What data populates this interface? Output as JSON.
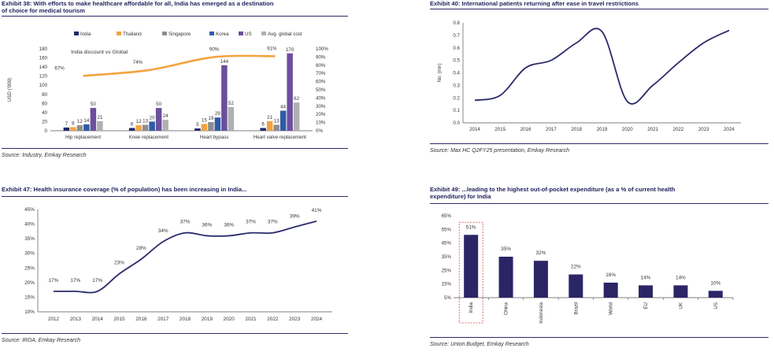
{
  "colors": {
    "navy": "#2b2b6b",
    "india": "#1f2a6b",
    "thailand": "#f4a340",
    "singapore": "#8e8e8e",
    "korea": "#2f5aa8",
    "us": "#6b4f9e",
    "avg": "#b0b0b0",
    "line": "#2b2b6b",
    "bar49": "#2b2566",
    "highlight": "#e04040"
  },
  "panels": {
    "p38": {
      "title_line1": "Exhibit 38: With efforts to make healthcare affordable for all, India has emerged as a destination",
      "title_line2": "of choice for medical tourism",
      "source": "Source: Industry, Emkay Research"
    },
    "p40": {
      "title": "Exhibit 40: International patients returning after ease in travel restrictions",
      "source": "Source: Max HC Q2FY25 presentation, Emkay Research"
    },
    "p47": {
      "title": "Exhibit 47: Health insurance coverage (% of population) has been increasing in India...",
      "source": "Source: IRDA, Emkay Research"
    },
    "p49": {
      "title_line1": "Exhibit 49: ...leading to the highest out-of-pocket expenditure (as a % of current health",
      "title_line2": "expenditure) for India",
      "source": "Source: Union Budget, Emkay Research"
    }
  },
  "chart_data": [
    {
      "id": "ex38",
      "type": "bar",
      "annotation": "India discount vs Global",
      "ylabel": "USD ('000)",
      "ylim": [
        0,
        180
      ],
      "yticks": [
        "0",
        "20",
        "40",
        "60",
        "80",
        "100",
        "120",
        "140",
        "160",
        "180"
      ],
      "y2lim": [
        0,
        100
      ],
      "y2ticks": [
        "0%",
        "10%",
        "20%",
        "30%",
        "40%",
        "50%",
        "60%",
        "70%",
        "80%",
        "90%",
        "100%"
      ],
      "categories": [
        "Hip replacement",
        "Knee replacement",
        "Heart bypass",
        "Heart valve replacement"
      ],
      "series": [
        {
          "name": "India",
          "values": [
            7,
            6,
            5,
            6
          ]
        },
        {
          "name": "Thailand",
          "values": [
            8,
            12,
            15,
            21
          ]
        },
        {
          "name": "Singapore",
          "values": [
            12,
            13,
            19,
            13
          ]
        },
        {
          "name": "Korea",
          "values": [
            14,
            20,
            29,
            44
          ]
        },
        {
          "name": "US",
          "values": [
            50,
            50,
            144,
            170
          ]
        },
        {
          "name": "Avg. global cost",
          "values": [
            21,
            24,
            52,
            62
          ]
        }
      ],
      "discount_line": {
        "name": "India discount vs Global",
        "values": [
          67,
          74,
          90,
          91
        ],
        "labels": [
          "67%",
          "74%",
          "90%",
          "91%"
        ]
      }
    },
    {
      "id": "ex40",
      "type": "line",
      "ylabel": "No. (mn)",
      "ylim": [
        0,
        0.8
      ],
      "yticks": [
        "0.0",
        "0.1",
        "0.2",
        "0.3",
        "0.4",
        "0.5",
        "0.6",
        "0.7",
        "0.8"
      ],
      "x": [
        "2014",
        "2015",
        "2016",
        "2017",
        "2018",
        "2019",
        "2020",
        "2021",
        "2022",
        "2023",
        "2024"
      ],
      "values": [
        0.18,
        0.22,
        0.44,
        0.5,
        0.64,
        0.73,
        0.17,
        0.3,
        0.48,
        0.64,
        0.74
      ]
    },
    {
      "id": "ex47",
      "type": "line",
      "ylim": [
        10,
        45
      ],
      "yticks": [
        "10%",
        "15%",
        "20%",
        "25%",
        "30%",
        "35%",
        "40%",
        "45%"
      ],
      "x": [
        "2012",
        "2013",
        "2014",
        "2015",
        "2016",
        "2017",
        "2018",
        "2019",
        "2020",
        "2021",
        "2022",
        "2023",
        "2024"
      ],
      "values": [
        17,
        17,
        17,
        23,
        28,
        34,
        37,
        36,
        36,
        37,
        37,
        39,
        41
      ],
      "labels": [
        "17%",
        "17%",
        "17%",
        "23%",
        "28%",
        "34%",
        "37%",
        "36%",
        "36%",
        "37%",
        "37%",
        "39%",
        "41%"
      ]
    },
    {
      "id": "ex49",
      "type": "bar",
      "ylim": [
        5,
        65
      ],
      "yticks": [
        "5%",
        "15%",
        "25%",
        "35%",
        "45%",
        "55%",
        "65%"
      ],
      "categories": [
        "India",
        "China",
        "Indonesia",
        "Brazil",
        "World",
        "EU",
        "UK",
        "US"
      ],
      "values": [
        51,
        35,
        32,
        22,
        16,
        14,
        14,
        10
      ],
      "labels": [
        "51%",
        "35%",
        "32%",
        "22%",
        "16%",
        "14%",
        "14%",
        "10%"
      ]
    }
  ]
}
